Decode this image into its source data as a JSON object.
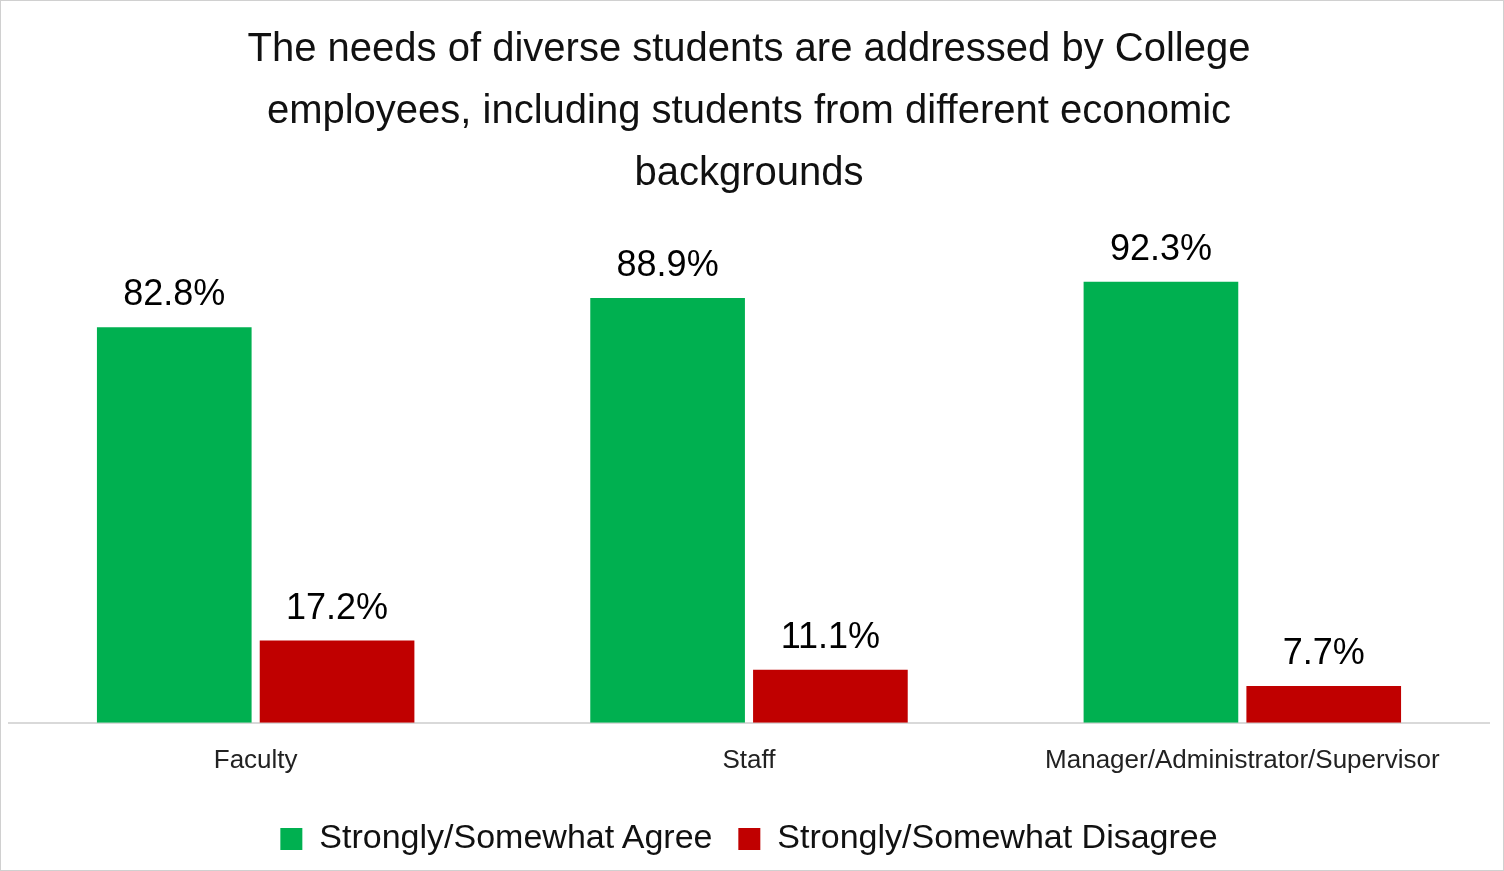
{
  "chart_data": {
    "type": "bar",
    "title": "The needs of diverse students are addressed by College employees, including students from different economic backgrounds",
    "categories": [
      "Faculty",
      "Staff",
      "Manager/Administrator/Supervisor"
    ],
    "series": [
      {
        "name": "Strongly/Somewhat Agree",
        "color": "#00b050",
        "values": [
          82.8,
          88.9,
          92.3
        ],
        "value_labels": [
          "82.8%",
          "88.9%",
          "92.3%"
        ]
      },
      {
        "name": "Strongly/Somewhat Disagree",
        "color": "#c00000",
        "values": [
          17.2,
          11.1,
          7.7
        ],
        "value_labels": [
          "17.2%",
          "11.1%",
          "7.7%"
        ]
      }
    ],
    "legend": "bottom",
    "grid": false
  }
}
